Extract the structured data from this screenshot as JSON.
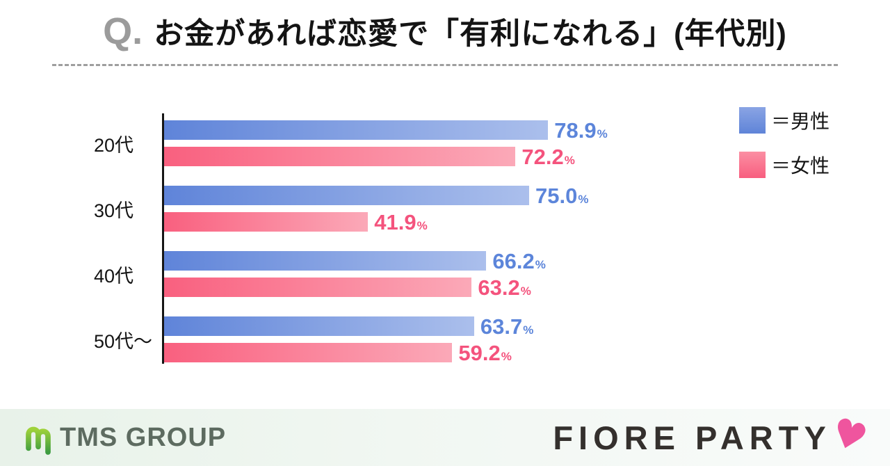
{
  "title": {
    "prefix": "Q.",
    "text": "お金があれば恋愛で「有利になれる」(年代別)"
  },
  "legend": {
    "items": [
      {
        "label": "＝男性",
        "swatch_top": "#8aa4e4",
        "swatch_bottom": "#5f84d8"
      },
      {
        "label": "＝女性",
        "swatch_top": "#fb8fa3",
        "swatch_bottom": "#f85e7f"
      }
    ]
  },
  "chart_data": {
    "type": "bar",
    "orientation": "horizontal",
    "unit": "%",
    "xlim": [
      0,
      100
    ],
    "grid": false,
    "categories": [
      "20代",
      "30代",
      "40代",
      "50代〜"
    ],
    "series": [
      {
        "name": "男性",
        "values": [
          78.9,
          75.0,
          66.2,
          63.7
        ],
        "bar_color_start": "#5f84d9",
        "bar_color_end": "#abbfec",
        "label_color": "#5c85da"
      },
      {
        "name": "女性",
        "values": [
          72.2,
          41.9,
          63.2,
          59.2
        ],
        "bar_color_start": "#f9607f",
        "bar_color_end": "#fba9b8",
        "label_color": "#f4537d"
      }
    ]
  },
  "footer": {
    "tms_text": "TMS GROUP",
    "tms_text_color": "#5d6b60",
    "tms_icon_color_top": "#9fd23a",
    "tms_icon_color_bottom": "#3d9c41",
    "fiore_text": "FIORE PARTY",
    "heart_icon": "♥",
    "heart_color": "#ef559e"
  }
}
